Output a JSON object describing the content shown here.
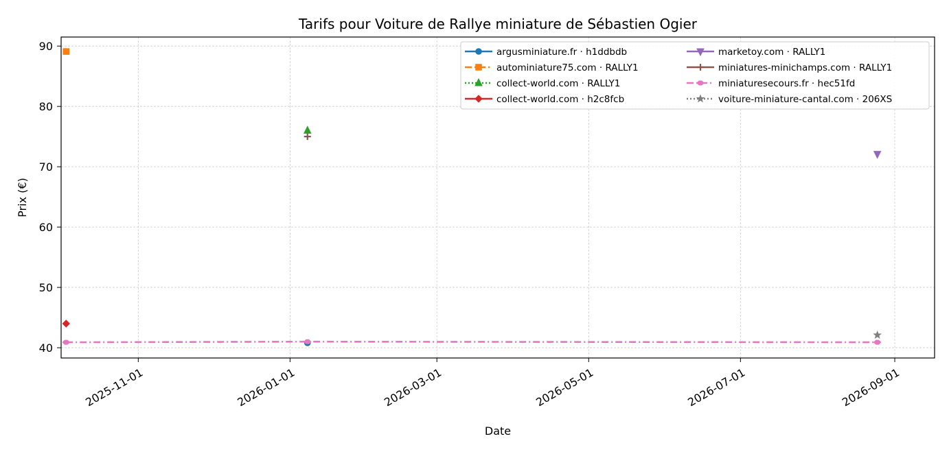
{
  "chart_data": {
    "type": "line",
    "title": "Tarifs pour Voiture de Rallye miniature de Sébastien Ogier",
    "xlabel": "Date",
    "ylabel": "Prix (€)",
    "x_type": "date",
    "xlim": [
      "2025-10-01",
      "2026-09-17"
    ],
    "ylim": [
      38.3,
      91.5
    ],
    "x_ticks": [
      "2025-11-01",
      "2026-01-01",
      "2026-03-01",
      "2026-05-01",
      "2026-07-01",
      "2026-09-01"
    ],
    "y_ticks": [
      40,
      50,
      60,
      70,
      80,
      90
    ],
    "grid": true,
    "legend_position": "top-right",
    "series": [
      {
        "name": "argusminiature.fr · h1ddbdb",
        "color": "#1f77b4",
        "marker": "circle",
        "dash": "solid",
        "points": [
          {
            "x": "2026-01-08",
            "y": 40.8
          }
        ]
      },
      {
        "name": "autominiature75.com · RALLY1",
        "color": "#ff7f0e",
        "marker": "square",
        "dash": "dashdot",
        "points": [
          {
            "x": "2025-10-03",
            "y": 89.1
          }
        ]
      },
      {
        "name": "collect-world.com · RALLY1",
        "color": "#2ca02c",
        "marker": "triangle-up",
        "dash": "dotted",
        "points": [
          {
            "x": "2026-01-08",
            "y": 76.0
          }
        ]
      },
      {
        "name": "collect-world.com · h2c8fcb",
        "color": "#d62728",
        "marker": "diamond",
        "dash": "solid",
        "points": [
          {
            "x": "2025-10-03",
            "y": 44.0
          }
        ]
      },
      {
        "name": "marketoy.com · RALLY1",
        "color": "#9467bd",
        "marker": "triangle-down",
        "dash": "solid",
        "points": [
          {
            "x": "2026-08-25",
            "y": 72.1
          }
        ]
      },
      {
        "name": "miniatures-minichamps.com · RALLY1",
        "color": "#8c564b",
        "marker": "plus",
        "dash": "solid",
        "points": [
          {
            "x": "2026-01-08",
            "y": 75.0
          }
        ]
      },
      {
        "name": "miniaturesecours.fr · hec51fd",
        "color": "#e377c2",
        "marker": "x",
        "dash": "dashdot",
        "points": [
          {
            "x": "2025-10-03",
            "y": 40.9
          },
          {
            "x": "2026-01-08",
            "y": 41.0
          },
          {
            "x": "2026-08-25",
            "y": 40.9
          }
        ]
      },
      {
        "name": "voiture-miniature-cantal.com · 206XS",
        "color": "#7f7f7f",
        "marker": "star",
        "dash": "dotted",
        "points": [
          {
            "x": "2026-08-25",
            "y": 42.1
          }
        ]
      }
    ]
  }
}
